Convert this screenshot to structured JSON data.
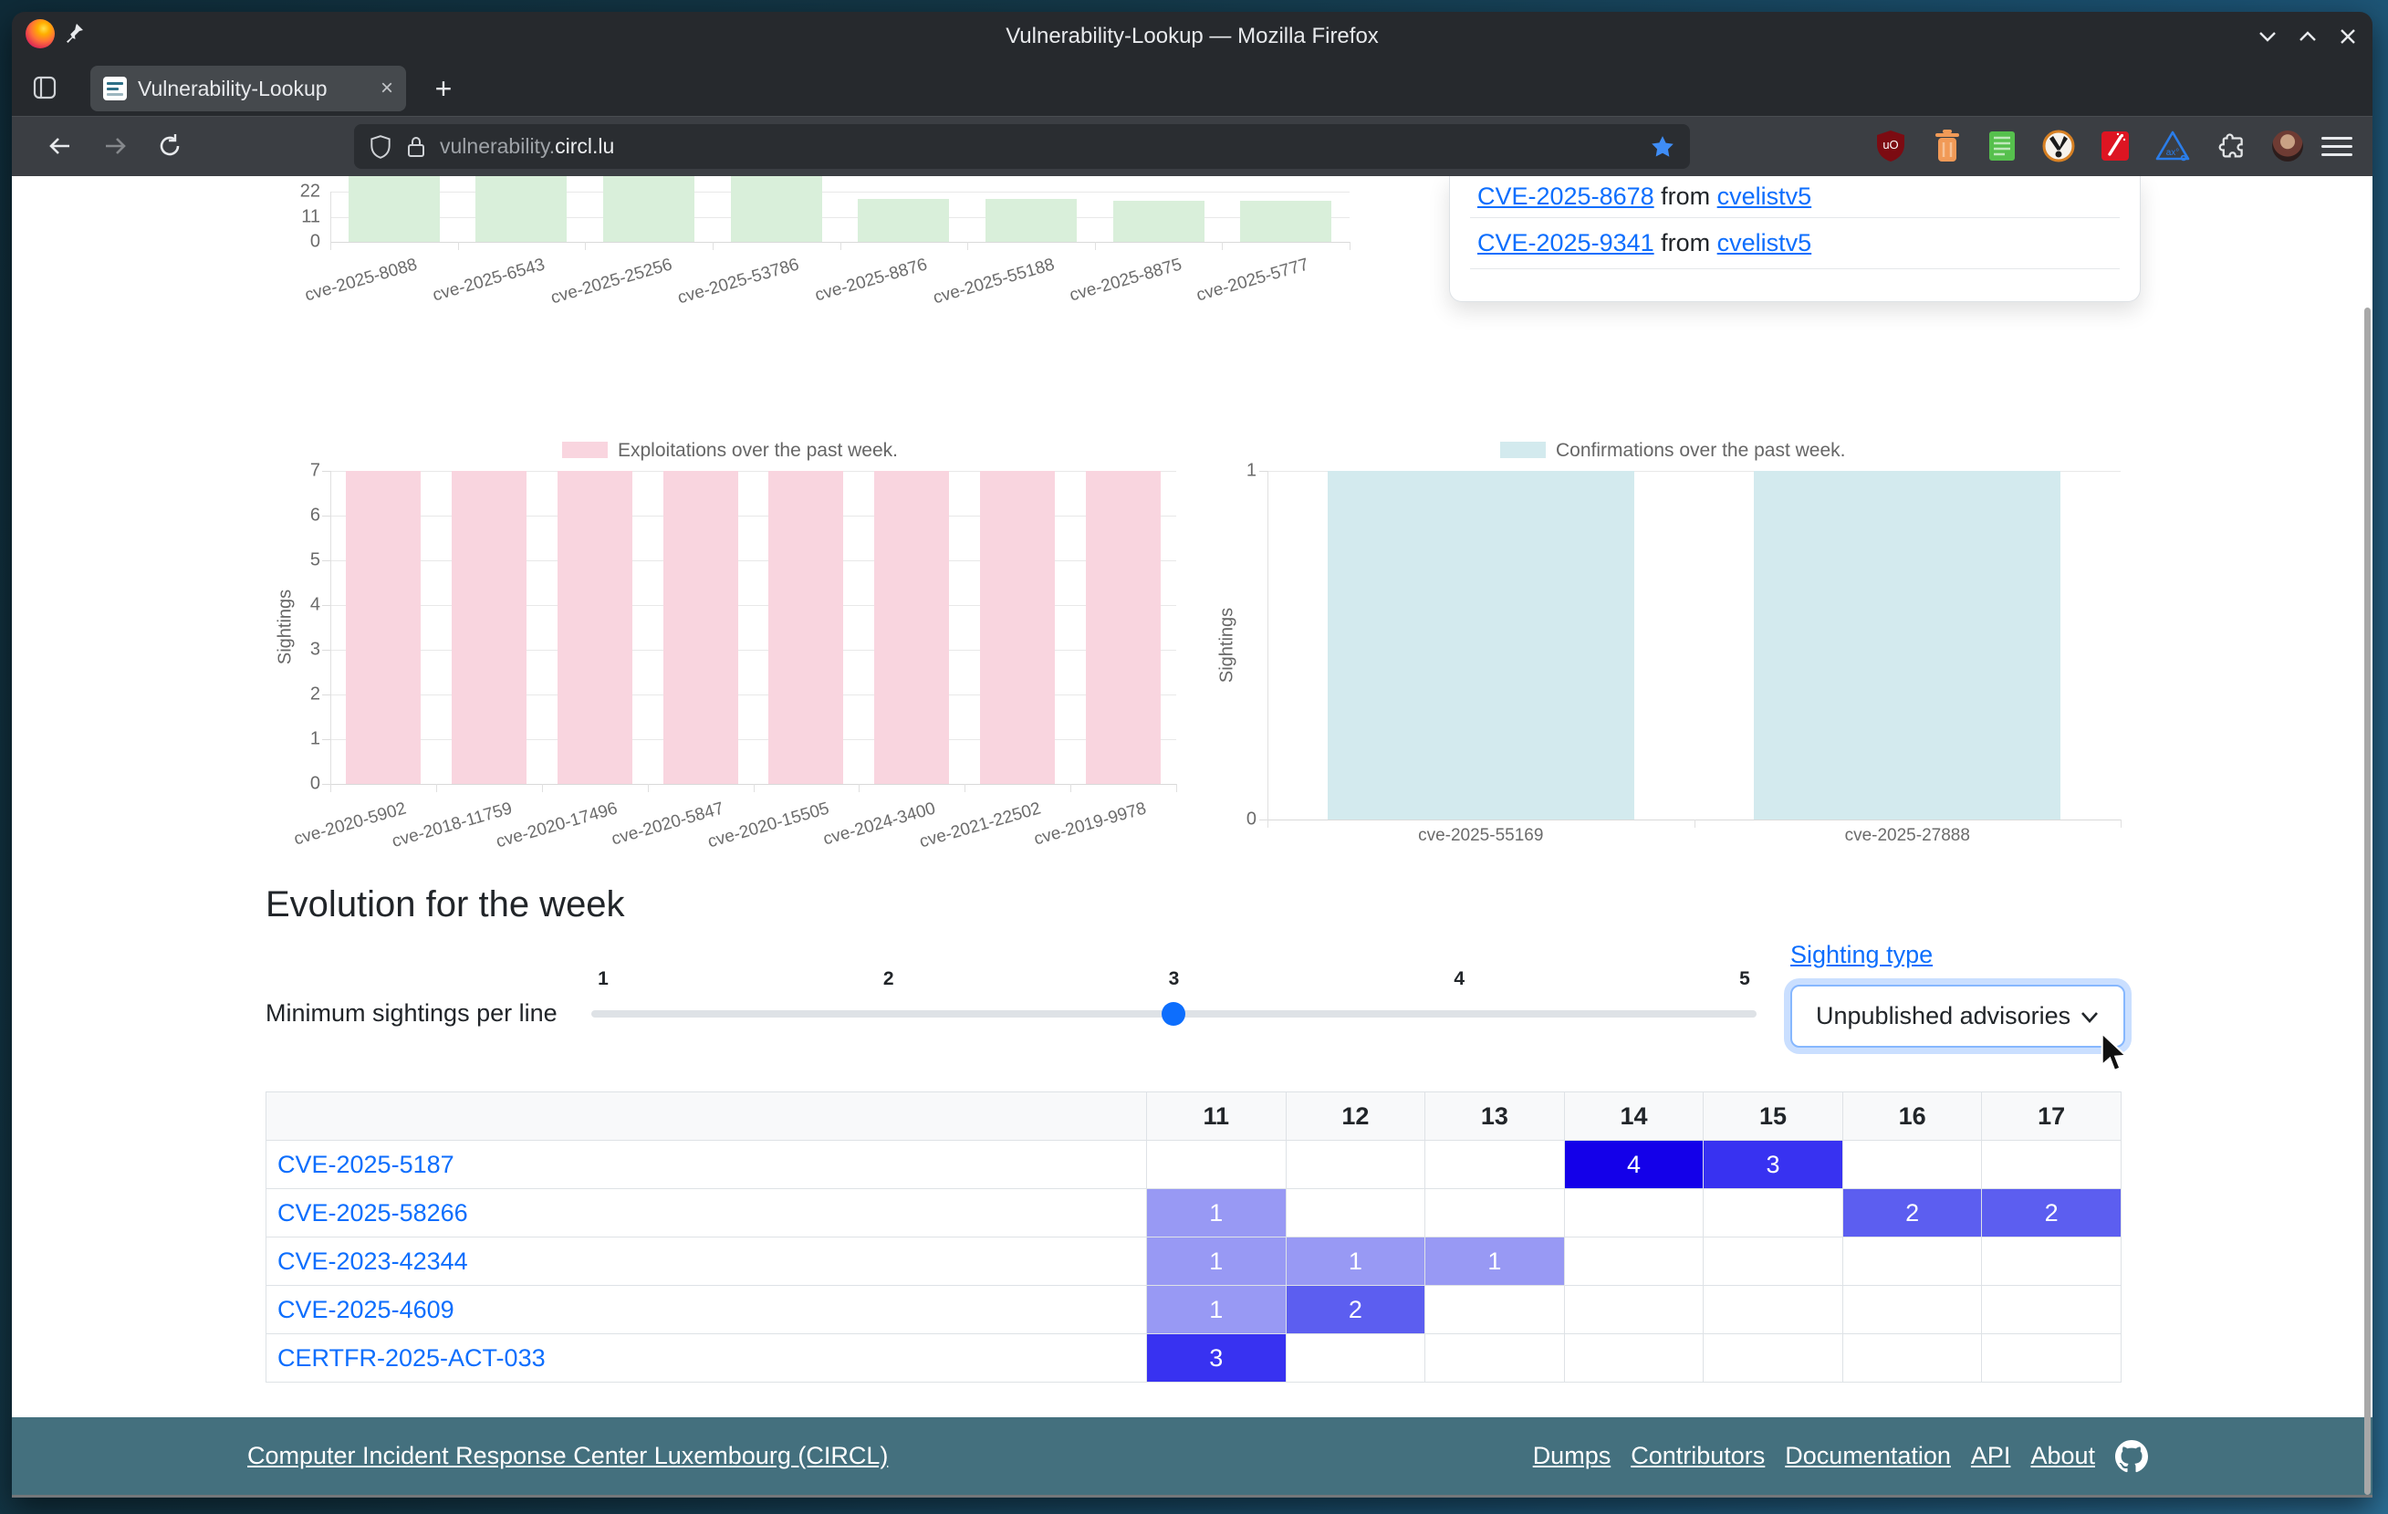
{
  "window": {
    "title": "Vulnerability-Lookup — Mozilla Firefox",
    "controls": [
      "minimize",
      "maximize",
      "close"
    ]
  },
  "browser": {
    "tab": {
      "label": "Vulnerability-Lookup",
      "close_glyph": "×"
    },
    "new_tab_glyph": "+",
    "url": {
      "host_prefix": "vulnerability.",
      "host_main": "circl.lu"
    },
    "toolbar_icons": [
      "shield-permissions",
      "lock",
      "bookmark-star",
      "ublock-origin",
      "trash",
      "notes",
      "privacy-badger",
      "stylus-wand",
      "axe-devtools",
      "extensions-puzzle",
      "profile-avatar",
      "menu"
    ]
  },
  "alerts": {
    "separator_word": "from",
    "items": [
      {
        "id": "CVE-2025-8678",
        "source": "cvelistv5"
      },
      {
        "id": "CVE-2025-9341",
        "source": "cvelistv5"
      }
    ]
  },
  "chart_data": [
    {
      "name": "recent-vulnerabilities-sightings",
      "type": "bar",
      "categories": [
        "cve-2025-8088",
        "cve-2025-6543",
        "cve-2025-25256",
        "cve-2025-53786",
        "cve-2025-8876",
        "cve-2025-55188",
        "cve-2025-8875",
        "cve-2025-5777"
      ],
      "values": [
        33,
        33,
        33,
        33,
        19,
        19,
        18,
        18
      ],
      "yticks": [
        0,
        11,
        22
      ],
      "ylim": [
        0,
        33
      ],
      "clipped_top": true,
      "color": "#d9efda",
      "legend": "",
      "xlabel": "",
      "ylabel": ""
    },
    {
      "name": "exploitations",
      "type": "bar",
      "legend": "Exploitations over the past week.",
      "ylabel": "Sightings",
      "categories": [
        "cve-2020-5902",
        "cve-2018-11759",
        "cve-2020-17496",
        "cve-2020-5847",
        "cve-2020-15505",
        "cve-2024-3400",
        "cve-2021-22502",
        "cve-2019-9978"
      ],
      "values": [
        7,
        7,
        7,
        7,
        7,
        7,
        7,
        7
      ],
      "yticks": [
        0,
        1,
        2,
        3,
        4,
        5,
        6,
        7
      ],
      "ylim": [
        0,
        7
      ],
      "color": "#f9d5df",
      "xlabel": ""
    },
    {
      "name": "confirmations",
      "type": "bar",
      "legend": "Confirmations over the past week.",
      "ylabel": "Sightings",
      "categories": [
        "cve-2025-55169",
        "cve-2025-27888"
      ],
      "values": [
        1,
        1
      ],
      "yticks": [
        0,
        1
      ],
      "ylim": [
        0,
        1
      ],
      "color": "#d3eaee",
      "xlabel": ""
    }
  ],
  "evolution": {
    "heading": "Evolution for the week",
    "slider": {
      "label": "Minimum sightings per line",
      "marks": [
        "1",
        "2",
        "3",
        "4",
        "5"
      ],
      "value": 3
    },
    "sighting_type_label": "Sighting type",
    "sighting_type_value": "Unpublished advisories",
    "table": {
      "columns": [
        "11",
        "12",
        "13",
        "14",
        "15",
        "16",
        "17"
      ],
      "rows": [
        {
          "id": "CVE-2025-5187",
          "cells": {
            "14": 4,
            "15": 3
          }
        },
        {
          "id": "CVE-2025-58266",
          "cells": {
            "11": 1,
            "16": 2,
            "17": 2
          }
        },
        {
          "id": "CVE-2023-42344",
          "cells": {
            "11": 1,
            "12": 1,
            "13": 1
          }
        },
        {
          "id": "CVE-2025-4609",
          "cells": {
            "11": 1,
            "12": 2
          }
        },
        {
          "id": "CERTFR-2025-ACT-033",
          "cells": {
            "11": 3
          }
        }
      ],
      "value_colors": {
        "1": "#9899f4",
        "2": "#5c5ef0",
        "3": "#3832f1",
        "4": "#1400e9"
      }
    }
  },
  "footer": {
    "left_link": "Computer Incident Response Center Luxembourg (CIRCL)",
    "links": [
      "Dumps",
      "Contributors",
      "Documentation",
      "API",
      "About"
    ]
  }
}
